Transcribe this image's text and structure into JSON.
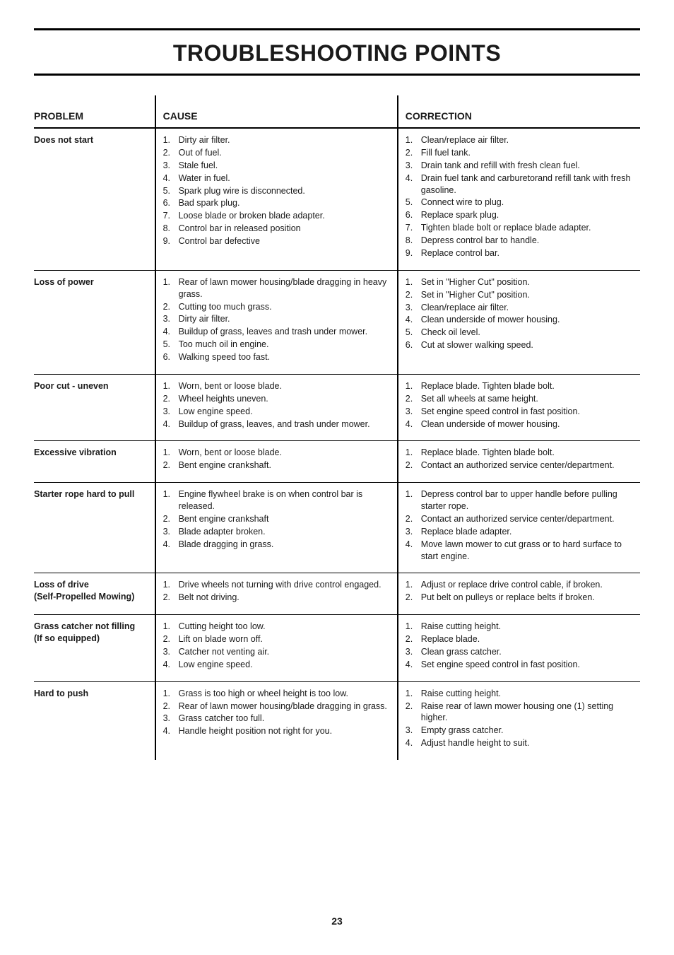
{
  "title": "TROUBLESHOOTING POINTS",
  "pageNumber": "23",
  "headers": {
    "problem": "PROBLEM",
    "cause": "CAUSE",
    "correction": "CORRECTION"
  },
  "rows": [
    {
      "problem": "Does not start",
      "causes": [
        "Dirty air filter.",
        "Out of fuel.",
        "Stale fuel.",
        "Water in fuel.",
        "Spark plug wire is disconnected.",
        "Bad spark plug.",
        "Loose blade or broken blade adapter.",
        "Control bar in released position",
        "Control bar defective"
      ],
      "corrections": [
        "Clean/replace air filter.",
        "Fill fuel tank.",
        "Drain tank and refill with fresh clean fuel.",
        "Drain fuel tank and carburetorand refill tank with fresh gasoline.",
        "Connect wire to plug.",
        "Replace spark plug.",
        "Tighten blade bolt or replace blade adapter.",
        "Depress control bar to handle.",
        "Replace control bar."
      ]
    },
    {
      "problem": "Loss of power",
      "causes": [
        "Rear of lawn mower housing/blade dragging in heavy grass.",
        "Cutting too much grass.",
        "Dirty air filter.",
        "Buildup of grass, leaves and trash under mower.",
        "Too much oil in engine.",
        "Walking speed too fast."
      ],
      "corrections": [
        "Set in \"Higher Cut\" position.",
        "Set in \"Higher Cut\" position.",
        "Clean/replace air filter.",
        "Clean underside of mower housing.",
        "Check oil level.",
        "Cut at slower walking speed."
      ]
    },
    {
      "problem": "Poor cut - uneven",
      "causes": [
        "Worn, bent or loose blade.",
        "Wheel heights uneven.",
        "Low engine speed.",
        "Buildup of grass, leaves, and trash under mower."
      ],
      "corrections": [
        "Replace blade. Tighten blade bolt.",
        "Set all wheels at same height.",
        "Set engine speed control in fast position.",
        "Clean underside of mower housing."
      ]
    },
    {
      "problem": "Excessive vibration",
      "causes": [
        "Worn, bent or loose blade.",
        "Bent engine crankshaft."
      ],
      "corrections": [
        "Replace blade. Tighten blade bolt.",
        "Contact an authorized service center/department."
      ]
    },
    {
      "problem": "Starter rope hard to pull",
      "causes": [
        "Engine flywheel brake is on when control bar is released.",
        "Bent engine crankshaft",
        "Blade adapter broken.",
        "Blade dragging in grass."
      ],
      "corrections": [
        "Depress control bar to upper handle before pulling starter rope.",
        "Contact an authorized service center/department.",
        "Replace blade adapter.",
        "Move lawn mower to cut grass or to hard surface to start engine."
      ]
    },
    {
      "problem": "Loss of drive\n(Self-Propelled Mowing)",
      "causes": [
        "Drive wheels not turning with drive control engaged.",
        "Belt not driving."
      ],
      "corrections": [
        "Adjust or replace drive control cable, if broken.",
        "Put belt on pulleys or replace belts if broken."
      ]
    },
    {
      "problem": "Grass catcher not filling\n(If so equipped)",
      "causes": [
        "Cutting height too low.",
        "Lift on blade worn off.",
        "Catcher not venting air.",
        "Low engine speed."
      ],
      "corrections": [
        "Raise cutting height.",
        "Replace blade.",
        "Clean grass catcher.",
        "Set engine speed control in fast position."
      ]
    },
    {
      "problem": "Hard to push",
      "causes": [
        "Grass is too high or wheel height is too low.",
        "Rear of lawn mower housing/blade dragging in grass.",
        "Grass catcher too full.",
        "Handle height position not right for you."
      ],
      "corrections": [
        "Raise cutting height.",
        "Raise rear of lawn mower housing one (1) setting higher.",
        "Empty grass catcher.",
        "Adjust handle height to suit."
      ]
    }
  ]
}
